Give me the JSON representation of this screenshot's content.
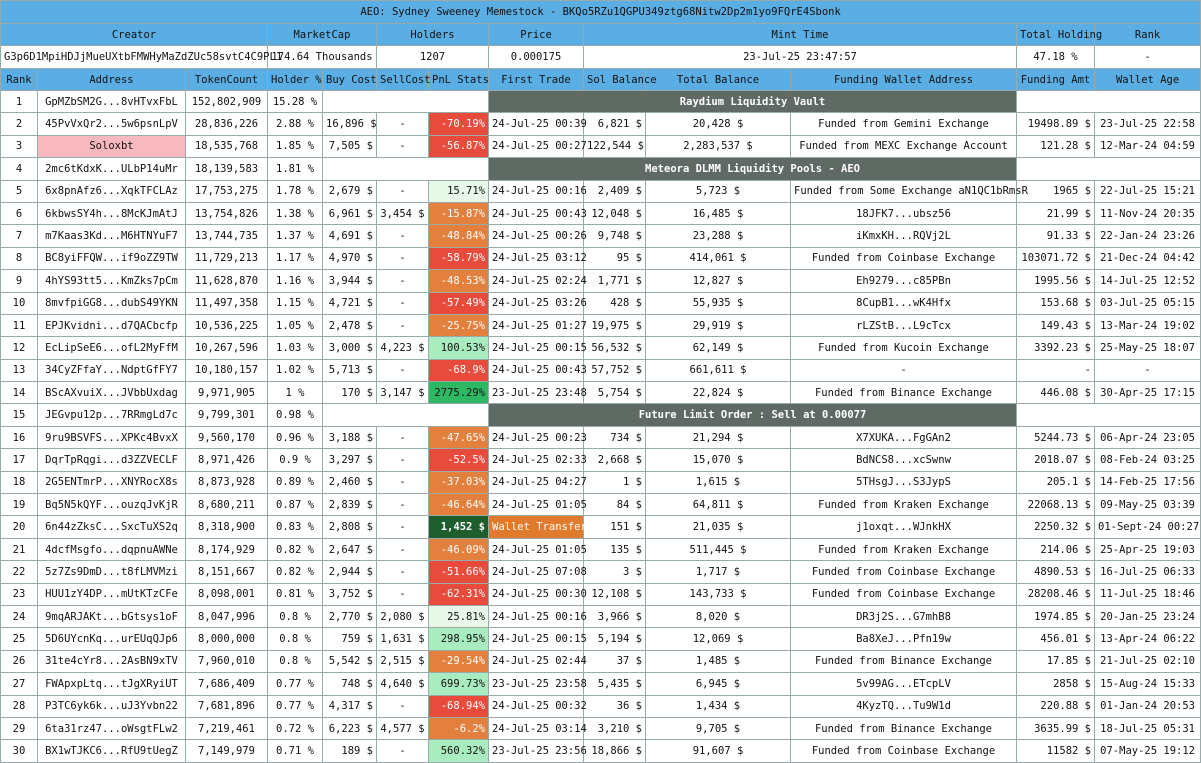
{
  "header": {
    "title": "AEO: Sydney Sweeney Memestock - BKQo5RZu1QGPU349ztg68Nitw2Dp2m1yo9FQrE4Sbonk",
    "labels": [
      "Creator",
      "MarketCap",
      "Holders",
      "Price",
      "Mint Time",
      "Total Holding",
      "Rank"
    ],
    "values": [
      "G3p6D1MpiHDJjMueUXtbFMWHyMaZdZUc58svtC4C9PL1",
      "174.64 Thousands",
      "1207",
      "0.000175",
      "23-Jul-25 23:47:57",
      "47.18 %",
      "-"
    ]
  },
  "table": {
    "columns": [
      "Rank",
      "Address",
      "TokenCount",
      "Holder %",
      "Buy Cost",
      "SellCost",
      "PnL Stats",
      "First Trade",
      "Sol Balance",
      "Total Balance",
      "Funding Wallet Address",
      "Funding Amt",
      "Wallet Age"
    ],
    "rows": [
      [
        "1",
        "GpMZbSM2G...8vHTvxFbL",
        "152,802,909",
        "15.28 %",
        "Raydium Liquidity Vault"
      ],
      [
        "2",
        "45PvVxQr2...5w6psnLpV",
        "28,836,226",
        "2.88 %",
        "16,896 $",
        "-",
        "-70.19%",
        "24-Jul-25 00:39",
        "6,821 $",
        "20,428 $",
        "Funded from Gemini Exchange",
        "19498.89 $",
        "23-Jul-25 22:58"
      ],
      [
        "3",
        "Soloxbt",
        "18,535,768",
        "1.85 %",
        "7,505 $",
        "-",
        "-56.87%",
        "24-Jul-25 00:27",
        "122,544 $",
        "2,283,537 $",
        "Funded from MEXC Exchange Account",
        "121.28 $",
        "12-Mar-24 04:59"
      ],
      [
        "4",
        "2mc6tKdxK...ULbP14uMr",
        "18,139,583",
        "1.81 %",
        "Meteora DLMM Liquidity Pools - AEO"
      ],
      [
        "5",
        "6x8pnAfz6...XqkTFCLAz",
        "17,753,275",
        "1.78 %",
        "2,679 $",
        "-",
        "15.71%",
        "24-Jul-25 00:16",
        "2,409 $",
        "5,723 $",
        "Funded from Some Exchange aN1QC1bRmsR",
        "1965 $",
        "22-Jul-25 15:21"
      ],
      [
        "6",
        "6kbwsSY4h...8McKJmAtJ",
        "13,754,826",
        "1.38 %",
        "6,961 $",
        "3,454 $",
        "-15.87%",
        "24-Jul-25 00:43",
        "12,048 $",
        "16,485 $",
        "18JFK7...ubsz56",
        "21.99 $",
        "11-Nov-24 20:35"
      ],
      [
        "7",
        "m7Kaas3Kd...M6HTNYuF7",
        "13,744,735",
        "1.37 %",
        "4,691 $",
        "-",
        "-48.84%",
        "24-Jul-25 00:26",
        "9,748 $",
        "23,288 $",
        "iKmxKH...RQVj2L",
        "91.33 $",
        "22-Jan-24 23:26"
      ],
      [
        "8",
        "BC8yiFFQW...if9oZZ9TW",
        "11,729,213",
        "1.17 %",
        "4,970 $",
        "-",
        "-58.79%",
        "24-Jul-25 03:12",
        "95 $",
        "414,061 $",
        "Funded from Coinbase Exchange",
        "103071.72 $",
        "21-Dec-24 04:42"
      ],
      [
        "9",
        "4hYS93tt5...KmZks7pCm",
        "11,628,870",
        "1.16 %",
        "3,944 $",
        "-",
        "-48.53%",
        "24-Jul-25 02:24",
        "1,771 $",
        "12,827 $",
        "Eh9279...c85PBn",
        "1995.56 $",
        "14-Jul-25 12:52"
      ],
      [
        "10",
        "8mvfpiGG8...dubS49YKN",
        "11,497,358",
        "1.15 %",
        "4,721 $",
        "-",
        "-57.49%",
        "24-Jul-25 03:26",
        "428 $",
        "55,935 $",
        "8CupB1...wK4Hfx",
        "153.68 $",
        "03-Jul-25 05:15"
      ],
      [
        "11",
        "EPJKvidni...d7QACbcfp",
        "10,536,225",
        "1.05 %",
        "2,478 $",
        "-",
        "-25.75%",
        "24-Jul-25 01:27",
        "19,975 $",
        "29,919 $",
        "rLZStB...L9cTcx",
        "149.43 $",
        "13-Mar-24 19:02"
      ],
      [
        "12",
        "EcLipSeE6...ofL2MyFfM",
        "10,267,596",
        "1.03 %",
        "3,000 $",
        "4,223 $",
        "100.53%",
        "24-Jul-25 00:15",
        "56,532 $",
        "62,149 $",
        "Funded from Kucoin Exchange",
        "3392.23 $",
        "25-May-25 18:07"
      ],
      [
        "13",
        "34CyZFfaY...NdptGfFY7",
        "10,180,157",
        "1.02 %",
        "5,713 $",
        "-",
        "-68.9%",
        "24-Jul-25 00:43",
        "57,752 $",
        "661,611 $",
        "-",
        "-",
        "-"
      ],
      [
        "14",
        "BScAXvuiX...JVbbUxdag",
        "9,971,905",
        "1 %",
        "170 $",
        "3,147 $",
        "2775.29%",
        "23-Jul-25 23:48",
        "5,754 $",
        "22,824 $",
        "Funded from Binance Exchange",
        "446.08 $",
        "30-Apr-25 17:15"
      ],
      [
        "15",
        "JEGvpu12p...7RRmgLd7c",
        "9,799,301",
        "0.98 %",
        "Future Limit Order : Sell at 0.00077"
      ],
      [
        "16",
        "9ru9BSVFS...XPKc4BvxX",
        "9,560,170",
        "0.96 %",
        "3,188 $",
        "-",
        "-47.65%",
        "24-Jul-25 00:23",
        "734 $",
        "21,294 $",
        "X7XUKA...FgGAn2",
        "5244.73 $",
        "06-Apr-24 23:05"
      ],
      [
        "17",
        "DqrTpRqgi...d3ZZVECLF",
        "8,971,426",
        "0.9 %",
        "3,297 $",
        "-",
        "-52.5%",
        "24-Jul-25 02:33",
        "2,668 $",
        "15,070 $",
        "BdNCS8...xcSwnw",
        "2018.07 $",
        "08-Feb-24 03:25"
      ],
      [
        "18",
        "2G5ENTmrP...XNYRocX8s",
        "8,873,928",
        "0.89 %",
        "2,460 $",
        "-",
        "-37.03%",
        "24-Jul-25 04:27",
        "1 $",
        "1,615 $",
        "5THsgJ...S3JypS",
        "205.1 $",
        "14-Feb-25 17:56"
      ],
      [
        "19",
        "Bq5N5kQYF...ouzqJvKjR",
        "8,680,211",
        "0.87 %",
        "2,839 $",
        "-",
        "-46.64%",
        "24-Jul-25 01:05",
        "84 $",
        "64,811 $",
        "Funded from Kraken Exchange",
        "22068.13 $",
        "09-May-25 03:39"
      ],
      [
        "20",
        "6n44zZksC...SxcTuXS2q",
        "8,318,900",
        "0.83 %",
        "2,808 $",
        "-",
        "1,452 $",
        "Wallet Transfer",
        "151 $",
        "21,035 $",
        "j1oxqt...WJnkHX",
        "2250.32 $",
        "01-Sept-24 00:27"
      ],
      [
        "21",
        "4dcfMsgfo...dqpnuAWNe",
        "8,174,929",
        "0.82 %",
        "2,647 $",
        "-",
        "-46.09%",
        "24-Jul-25 01:05",
        "135 $",
        "511,445 $",
        "Funded from Kraken Exchange",
        "214.06 $",
        "25-Apr-25 19:03"
      ],
      [
        "22",
        "5z7Zs9DmD...t8fLMVMzi",
        "8,151,667",
        "0.82 %",
        "2,944 $",
        "-",
        "-51.66%",
        "24-Jul-25 07:08",
        "3 $",
        "1,717 $",
        "Funded from Coinbase Exchange",
        "4890.53 $",
        "16-Jul-25 06:33"
      ],
      [
        "23",
        "HUU1zY4DP...mUtKTzCFe",
        "8,098,001",
        "0.81 %",
        "3,752 $",
        "-",
        "-62.31%",
        "24-Jul-25 00:30",
        "12,108 $",
        "143,733 $",
        "Funded from Coinbase Exchange",
        "28208.46 $",
        "11-Jul-25 18:46"
      ],
      [
        "24",
        "9mqARJAKt...bGtsys1oF",
        "8,047,996",
        "0.8 %",
        "2,770 $",
        "2,080 $",
        "25.81%",
        "24-Jul-25 00:16",
        "3,966 $",
        "8,020 $",
        "DR3j2S...G7mhB8",
        "1974.85 $",
        "20-Jan-25 23:24"
      ],
      [
        "25",
        "5D6UYcnKq...urEUqQJp6",
        "8,000,000",
        "0.8 %",
        "759 $",
        "1,631 $",
        "298.95%",
        "24-Jul-25 00:15",
        "5,194 $",
        "12,069 $",
        "Ba8XeJ...Pfn19w",
        "456.01 $",
        "13-Apr-24 06:22"
      ],
      [
        "26",
        "31te4cYr8...2AsBN9xTV",
        "7,960,010",
        "0.8 %",
        "5,542 $",
        "2,515 $",
        "-29.54%",
        "24-Jul-25 02:44",
        "37 $",
        "1,485 $",
        "Funded from Binance Exchange",
        "17.85 $",
        "21-Jul-25 02:10"
      ],
      [
        "27",
        "FWApxpLtq...tJgXRyiUT",
        "7,686,409",
        "0.77 %",
        "748 $",
        "4,640 $",
        "699.73%",
        "23-Jul-25 23:58",
        "5,435 $",
        "6,945 $",
        "5v99AG...ETcpLV",
        "2858 $",
        "15-Aug-24 15:33"
      ],
      [
        "28",
        "P3TC6yk6k...uJ3Yvbn22",
        "7,681,896",
        "0.77 %",
        "4,317 $",
        "-",
        "-68.94%",
        "24-Jul-25 00:32",
        "36 $",
        "1,434 $",
        "4KyzTQ...Tu9W1d",
        "220.88 $",
        "01-Jan-24 20:53"
      ],
      [
        "29",
        "6ta31rz47...oWsgtFLw2",
        "7,219,461",
        "0.72 %",
        "6,223 $",
        "4,577 $",
        "-6.2%",
        "24-Jul-25 03:14",
        "3,210 $",
        "9,705 $",
        "Funded from Binance Exchange",
        "3635.99 $",
        "18-Jul-25 05:31"
      ],
      [
        "30",
        "BX1wTJKC6...RfU9tUegZ",
        "7,149,979",
        "0.71 %",
        "189 $",
        "-",
        "560.32%",
        "23-Jul-25 23:56",
        "18,866 $",
        "91,607 $",
        "Funded from Coinbase Exchange",
        "11582 $",
        "07-May-25 19:12"
      ]
    ]
  }
}
